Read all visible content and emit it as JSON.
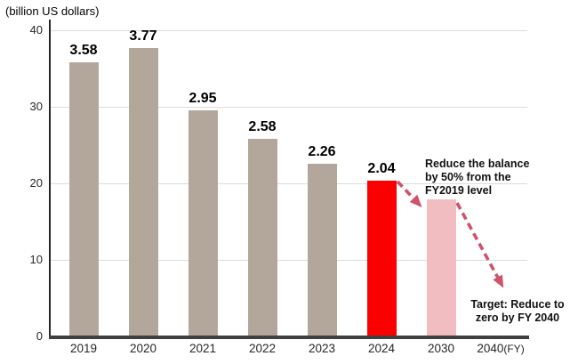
{
  "chart_data": {
    "type": "bar",
    "title": "",
    "unit_label": "(billion US dollars)",
    "fiscal_year_suffix": "(FY)",
    "categories": [
      "2019",
      "2020",
      "2021",
      "2022",
      "2023",
      "2024",
      "2030",
      "2040"
    ],
    "bars": [
      {
        "category": "2019",
        "value_label": "3.58",
        "axis_height": 35.8,
        "color_key": "neutral"
      },
      {
        "category": "2020",
        "value_label": "3.77",
        "axis_height": 37.7,
        "color_key": "neutral"
      },
      {
        "category": "2021",
        "value_label": "2.95",
        "axis_height": 29.5,
        "color_key": "neutral"
      },
      {
        "category": "2022",
        "value_label": "2.58",
        "axis_height": 25.8,
        "color_key": "neutral"
      },
      {
        "category": "2023",
        "value_label": "2.26",
        "axis_height": 22.6,
        "color_key": "neutral"
      },
      {
        "category": "2024",
        "value_label": "2.04",
        "axis_height": 20.4,
        "color_key": "highlight"
      },
      {
        "category": "2030",
        "value_label": "",
        "axis_height": 17.9,
        "color_key": "projection"
      }
    ],
    "yticks": [
      0,
      10,
      20,
      30,
      40
    ],
    "ylim": [
      0,
      40
    ],
    "grid": "horizontal",
    "legend": "none",
    "annotations": [
      "Reduce the balance by 50% from the FY2019 level",
      "Target: Reduce to zero by FY 2040"
    ]
  },
  "colors": {
    "bar_neutral": "#b3a79c",
    "bar_highlight": "#fb0000",
    "bar_projection": "#f2bdc0",
    "arrow": "#cf5268",
    "axis_line": "#404040",
    "gridline": "#dcdcdc",
    "text": "#1a1a1a"
  }
}
